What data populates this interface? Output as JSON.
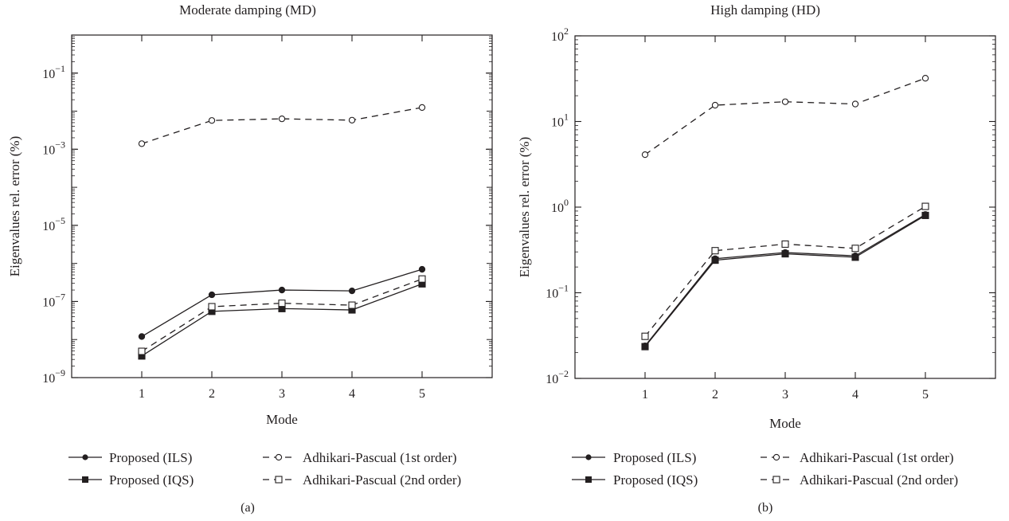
{
  "figure": {
    "legend": [
      "Proposed (ILS)",
      "Proposed (IQS)",
      "Adhikari-Pascual (1st order)",
      "Adhikari-Pascual (2nd order)"
    ]
  },
  "chart_data": [
    {
      "type": "line",
      "title": "Moderate damping (MD)",
      "xlabel": "Mode",
      "ylabel": "Eigenvalues rel. error (%)",
      "caption": "(a)",
      "y_scale": "log",
      "xlim": [
        0,
        6
      ],
      "ylim": [
        1e-09,
        1
      ],
      "x": [
        1,
        2,
        3,
        4,
        5
      ],
      "xticks": [
        "1",
        "2",
        "3",
        "4",
        "5"
      ],
      "yticks": [
        {
          "base": "10",
          "exp": "−9",
          "value": 1e-09
        },
        {
          "base": "10",
          "exp": "−7",
          "value": 1e-07
        },
        {
          "base": "10",
          "exp": "−5",
          "value": 1e-05
        },
        {
          "base": "10",
          "exp": "−3",
          "value": 0.001
        },
        {
          "base": "10",
          "exp": "−1",
          "value": 0.1
        }
      ],
      "legend_position": "bottom",
      "series": [
        {
          "name": "Proposed (ILS)",
          "values": [
            1.2e-08,
            1.5e-07,
            2e-07,
            1.9e-07,
            7e-07
          ],
          "marker": "filled-circle",
          "dash": "solid"
        },
        {
          "name": "Proposed (IQS)",
          "values": [
            3.7e-09,
            5.5e-08,
            6.5e-08,
            6e-08,
            2.9e-07
          ],
          "marker": "filled-square",
          "dash": "solid"
        },
        {
          "name": "Adhikari-Pascual (1st order)",
          "values": [
            0.0014,
            0.0057,
            0.0063,
            0.0058,
            0.0125
          ],
          "marker": "open-circle",
          "dash": "dashed"
        },
        {
          "name": "Adhikari-Pascual (2nd order)",
          "values": [
            4.9e-09,
            7.3e-08,
            9e-08,
            8e-08,
            3.9e-07
          ],
          "marker": "open-square",
          "dash": "dashed"
        }
      ]
    },
    {
      "type": "line",
      "title": "High damping (HD)",
      "xlabel": "Mode",
      "ylabel": "Eigenvalues rel. error (%)",
      "caption": "(b)",
      "y_scale": "log",
      "xlim": [
        0,
        6
      ],
      "ylim": [
        0.01,
        100
      ],
      "x": [
        1,
        2,
        3,
        4,
        5
      ],
      "xticks": [
        "1",
        "2",
        "3",
        "4",
        "5"
      ],
      "yticks": [
        {
          "base": "10",
          "exp": "−2",
          "value": 0.01
        },
        {
          "base": "10",
          "exp": "−1",
          "value": 0.1
        },
        {
          "base": "10",
          "exp": "0",
          "value": 1
        },
        {
          "base": "10",
          "exp": "1",
          "value": 10
        },
        {
          "base": "10",
          "exp": "2",
          "value": 100
        }
      ],
      "legend_position": "bottom",
      "series": [
        {
          "name": "Proposed (ILS)",
          "values": [
            0.024,
            0.25,
            0.295,
            0.27,
            0.82
          ],
          "marker": "filled-circle",
          "dash": "solid"
        },
        {
          "name": "Proposed (IQS)",
          "values": [
            0.0235,
            0.24,
            0.285,
            0.26,
            0.8
          ],
          "marker": "filled-square",
          "dash": "solid"
        },
        {
          "name": "Adhikari-Pascual (1st order)",
          "values": [
            4.1,
            15.5,
            17.0,
            16.0,
            32.0
          ],
          "marker": "open-circle",
          "dash": "dashed"
        },
        {
          "name": "Adhikari-Pascual (2nd order)",
          "values": [
            0.031,
            0.31,
            0.37,
            0.33,
            1.02
          ],
          "marker": "open-square",
          "dash": "dashed"
        }
      ]
    }
  ]
}
